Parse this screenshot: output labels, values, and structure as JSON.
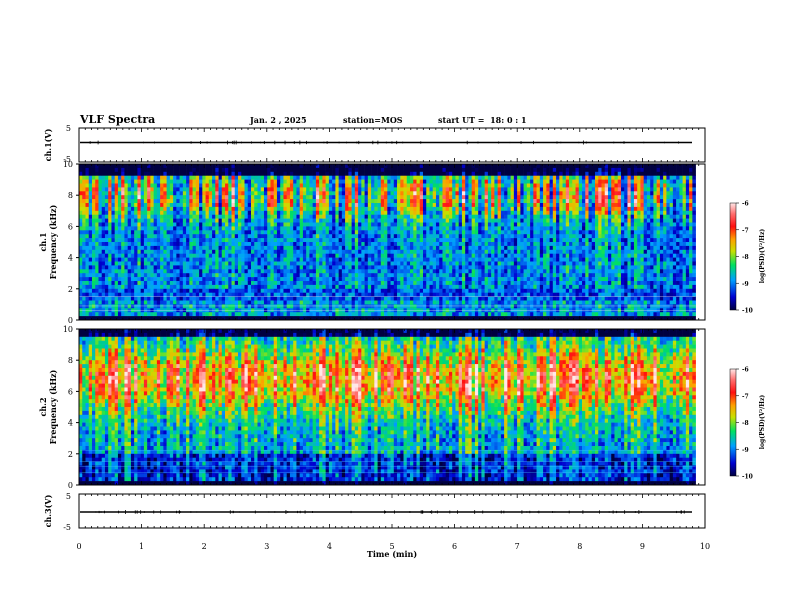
{
  "header": {
    "title": "VLF Spectra",
    "date": "Jan. 2 , 2025",
    "station": "station=MOS",
    "start": "start UT =  18: 0 : 1"
  },
  "chart_data": [
    {
      "type": "line",
      "panel": "ch1-waveform",
      "ylabel": "ch.1(V)",
      "yticks": [
        "5",
        "-5"
      ],
      "ylim": [
        -5,
        5
      ],
      "xlim": [
        0,
        10
      ],
      "series": [
        {
          "values_description_level": -0.2
        }
      ]
    },
    {
      "type": "heatmap",
      "panel": "ch1-spectrogram",
      "ylabel": "ch.1 Frequency (kHz)",
      "ylabel_line1": "ch.1",
      "ylabel_line2": "Frequency (kHz)",
      "yticks": [
        "0",
        "2",
        "4",
        "6",
        "8",
        "10"
      ],
      "ylim": [
        0,
        10
      ],
      "xlim": [
        0,
        9.85
      ],
      "colorbar": {
        "ticks": [
          "-6",
          "-7",
          "-8",
          "-9",
          "-10"
        ],
        "range": [
          -10,
          -6
        ],
        "label": "log(PSD)(V²/Hz)"
      }
    },
    {
      "type": "heatmap",
      "panel": "ch2-spectrogram",
      "ylabel": "ch.2 Frequency (kHz)",
      "ylabel_line1": "ch.2",
      "ylabel_line2": "Frequency (kHz)",
      "yticks": [
        "0",
        "2",
        "4",
        "6",
        "8",
        "10"
      ],
      "ylim": [
        0,
        10
      ],
      "xlim": [
        0,
        9.85
      ],
      "colorbar": {
        "ticks": [
          "-6",
          "-7",
          "-8",
          "-9",
          "-10"
        ],
        "range": [
          -10,
          -6
        ],
        "label": "log(PSD)(V²/Hz)"
      }
    },
    {
      "type": "line",
      "panel": "ch3-waveform",
      "ylabel": "ch.3(V)",
      "yticks": [
        "5",
        "-5"
      ],
      "ylim": [
        -5,
        5
      ],
      "xlim": [
        0,
        10
      ],
      "xlabel": "Time (min)",
      "xticks": [
        "0",
        "1",
        "2",
        "3",
        "4",
        "5",
        "6",
        "7",
        "8",
        "9",
        "10"
      ]
    }
  ]
}
